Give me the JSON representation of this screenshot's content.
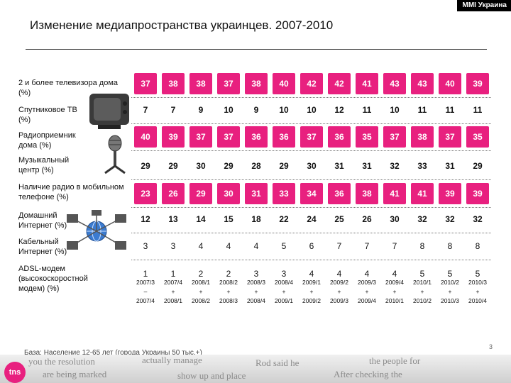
{
  "header": {
    "brand": "MMI Украина",
    "title": "Изменение медиапространства украинцев. 2007-2010"
  },
  "rows": [
    {
      "label": "2 и более телевизора дома (%)",
      "style": "pink",
      "values": [
        "37",
        "38",
        "38",
        "37",
        "38",
        "40",
        "42",
        "42",
        "41",
        "43",
        "43",
        "40",
        "39"
      ]
    },
    {
      "label": "Спутниковое ТВ (%)",
      "style": "plain",
      "values": [
        "7",
        "7",
        "9",
        "10",
        "9",
        "10",
        "10",
        "12",
        "11",
        "10",
        "11",
        "11",
        "11"
      ]
    },
    {
      "label": "Радиоприемник дома (%)",
      "style": "pink",
      "values": [
        "40",
        "39",
        "37",
        "37",
        "36",
        "36",
        "37",
        "36",
        "35",
        "37",
        "38",
        "37",
        "35"
      ]
    },
    {
      "label": "Музыкальный центр (%)",
      "style": "plain",
      "values": [
        "29",
        "29",
        "30",
        "29",
        "28",
        "29",
        "30",
        "31",
        "31",
        "32",
        "33",
        "31",
        "29"
      ]
    },
    {
      "label": "Наличие радио в мобильном телефоне (%)",
      "style": "pink",
      "values": [
        "23",
        "26",
        "29",
        "30",
        "31",
        "33",
        "34",
        "36",
        "38",
        "41",
        "41",
        "39",
        "39"
      ]
    },
    {
      "label": "Домашний Интернет (%)",
      "style": "plain",
      "values": [
        "12",
        "13",
        "14",
        "15",
        "18",
        "22",
        "24",
        "25",
        "26",
        "30",
        "32",
        "32",
        "32"
      ]
    },
    {
      "label": "Кабельный Интернет (%)",
      "style": "plain2",
      "values": [
        "3",
        "3",
        "4",
        "4",
        "4",
        "5",
        "6",
        "7",
        "7",
        "7",
        "8",
        "8",
        "8"
      ]
    },
    {
      "label": "ADSL-модем (высокоскоростной модем) (%)",
      "style": "plain2",
      "values": [
        "1",
        "1",
        "2",
        "2",
        "3",
        "3",
        "4",
        "4",
        "4",
        "4",
        "5",
        "5",
        "5"
      ]
    }
  ],
  "periods": [
    [
      "2007/3",
      "–",
      "2007/4"
    ],
    [
      "2007/4",
      "+",
      "2008/1"
    ],
    [
      "2008/1",
      "+",
      "2008/2"
    ],
    [
      "2008/2",
      "+",
      "2008/3"
    ],
    [
      "2008/3",
      "+",
      "2008/4"
    ],
    [
      "2008/4",
      "+",
      "2009/1"
    ],
    [
      "2009/1",
      "+",
      "2009/2"
    ],
    [
      "2009/2",
      "+",
      "2009/3"
    ],
    [
      "2009/3",
      "+",
      "2009/4"
    ],
    [
      "2009/4",
      "+",
      "2010/1"
    ],
    [
      "2010/1",
      "+",
      "2010/2"
    ],
    [
      "2010/2",
      "+",
      "2010/3"
    ],
    [
      "2010/3",
      "+",
      "2010/4"
    ]
  ],
  "footer": {
    "note": "База: Население 12-65 лет (города Украины 50 тыс.+)",
    "page": "3",
    "logo": "tns"
  },
  "icons": [
    "tv-icon",
    "microphone-icon",
    "globe-network-icon"
  ]
}
